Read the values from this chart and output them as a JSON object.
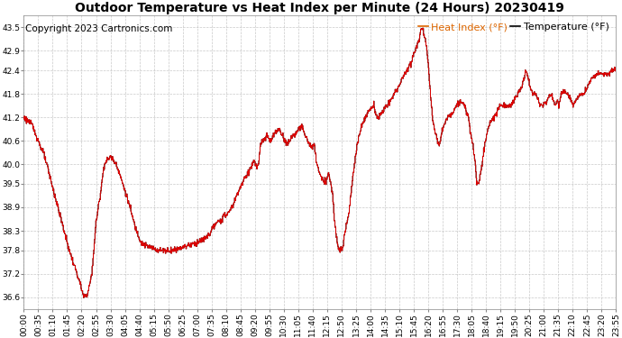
{
  "title": "Outdoor Temperature vs Heat Index per Minute (24 Hours) 20230419",
  "copyright": "Copyright 2023 Cartronics.com",
  "legend_heat": "Heat Index (°F)",
  "legend_temp": "Temperature (°F)",
  "heat_color": "#dd0000",
  "temp_color": "#000000",
  "background_color": "#ffffff",
  "plot_bg_color": "#ffffff",
  "grid_color": "#bbbbbb",
  "yticks": [
    36.6,
    37.2,
    37.8,
    38.3,
    38.9,
    39.5,
    40.0,
    40.6,
    41.2,
    41.8,
    42.4,
    42.9,
    43.5
  ],
  "ylim": [
    36.3,
    43.8
  ],
  "xtick_labels": [
    "00:00",
    "00:35",
    "01:10",
    "01:45",
    "02:20",
    "02:55",
    "03:30",
    "04:05",
    "04:40",
    "05:15",
    "05:50",
    "06:25",
    "07:00",
    "07:35",
    "08:10",
    "08:45",
    "09:20",
    "09:55",
    "10:30",
    "11:05",
    "11:40",
    "12:15",
    "12:50",
    "13:25",
    "14:00",
    "14:35",
    "15:10",
    "15:45",
    "16:20",
    "16:55",
    "17:30",
    "18:05",
    "18:40",
    "19:15",
    "19:50",
    "20:25",
    "21:00",
    "21:35",
    "22:10",
    "22:45",
    "23:20",
    "23:55"
  ],
  "title_fontsize": 10,
  "copyright_fontsize": 7.5,
  "tick_fontsize": 6.5,
  "legend_fontsize": 8,
  "legend_heat_color": "#dd6600",
  "legend_temp_color": "#000000",
  "figwidth": 6.9,
  "figheight": 3.75,
  "dpi": 100
}
